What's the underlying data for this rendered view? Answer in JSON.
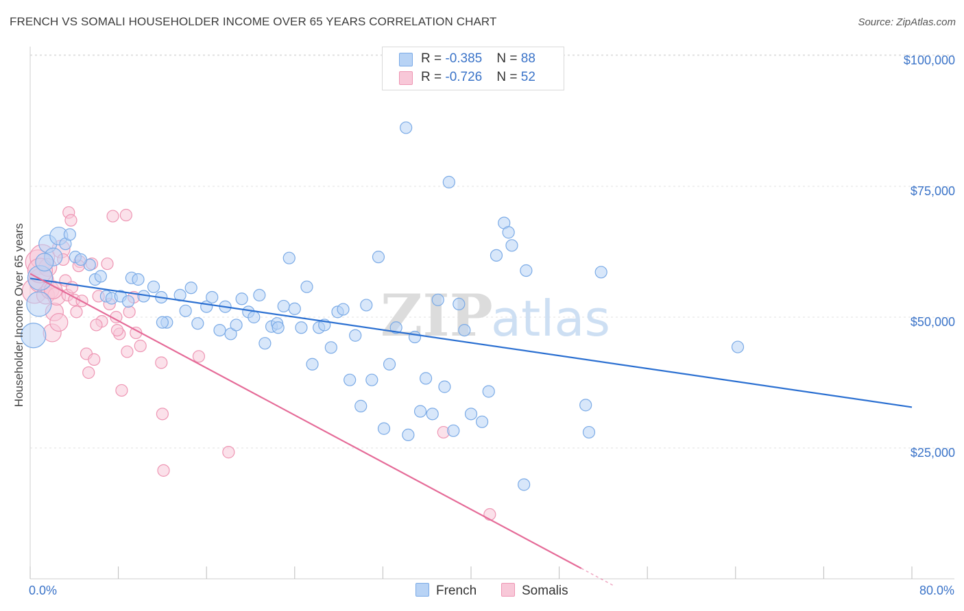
{
  "header": {
    "title": "FRENCH VS SOMALI HOUSEHOLDER INCOME OVER 65 YEARS CORRELATION CHART",
    "source": "Source: ZipAtlas.com"
  },
  "legend": {
    "rows": [
      {
        "r_label": "R = ",
        "r_value": "-0.385",
        "n_label": "N = ",
        "n_value": "88"
      },
      {
        "r_label": "R = ",
        "r_value": "-0.726",
        "n_label": "N = ",
        "n_value": "52"
      }
    ]
  },
  "watermark": {
    "zip": "ZIP",
    "atlas": "atlas"
  },
  "colors": {
    "french_fill": "#b8d3f5",
    "french_stroke": "#7aaae6",
    "french_line": "#2a6fd1",
    "somali_fill": "#f8c8d8",
    "somali_stroke": "#ee95b3",
    "somali_line": "#e56b98",
    "axis_text": "#3a73c8",
    "grid": "#e0e0e0"
  },
  "chart_data": {
    "type": "scatter",
    "title": "FRENCH VS SOMALI HOUSEHOLDER INCOME OVER 65 YEARS CORRELATION CHART",
    "xlabel": "",
    "ylabel": "Householder Income Over 65 years",
    "xlim": [
      0,
      80
    ],
    "ylim": [
      0,
      105000
    ],
    "x_tick_labels": [
      "0.0%",
      "80.0%"
    ],
    "y_ticks": [
      25000,
      50000,
      75000,
      100000
    ],
    "y_tick_labels": [
      "$25,000",
      "$50,000",
      "$75,000",
      "$100,000"
    ],
    "grid": "horizontal dashed",
    "legend_position": "bottom",
    "series": [
      {
        "name": "French",
        "r": -0.385,
        "n": 88,
        "trend": {
          "x": [
            0,
            80
          ],
          "y": [
            57400,
            32800
          ]
        },
        "points": [
          [
            0.3,
            46500
          ],
          [
            0.8,
            52500
          ],
          [
            0.9,
            57500
          ],
          [
            1.6,
            64000
          ],
          [
            2.1,
            61500
          ],
          [
            2.6,
            65500
          ],
          [
            3.2,
            64000
          ],
          [
            4.1,
            61500
          ],
          [
            5.4,
            60000
          ],
          [
            5.9,
            57200
          ],
          [
            6.4,
            57800
          ],
          [
            6.9,
            54000
          ],
          [
            7.4,
            53600
          ],
          [
            8.2,
            54000
          ],
          [
            8.9,
            53000
          ],
          [
            9.2,
            57500
          ],
          [
            9.8,
            57200
          ],
          [
            10.3,
            54000
          ],
          [
            11.2,
            55800
          ],
          [
            11.9,
            53800
          ],
          [
            12.4,
            49000
          ],
          [
            13.6,
            54200
          ],
          [
            14.1,
            51200
          ],
          [
            14.6,
            55600
          ],
          [
            15.2,
            48800
          ],
          [
            16.0,
            52000
          ],
          [
            16.5,
            53800
          ],
          [
            17.2,
            47500
          ],
          [
            17.7,
            52000
          ],
          [
            18.2,
            46800
          ],
          [
            18.7,
            48500
          ],
          [
            19.2,
            53500
          ],
          [
            19.8,
            51000
          ],
          [
            20.3,
            50000
          ],
          [
            20.8,
            54200
          ],
          [
            21.3,
            45000
          ],
          [
            21.9,
            48200
          ],
          [
            22.4,
            48800
          ],
          [
            23.0,
            52100
          ],
          [
            23.5,
            61300
          ],
          [
            24.0,
            51600
          ],
          [
            24.6,
            48000
          ],
          [
            25.1,
            55800
          ],
          [
            25.6,
            41000
          ],
          [
            26.2,
            48000
          ],
          [
            26.7,
            48500
          ],
          [
            27.3,
            44200
          ],
          [
            27.9,
            51000
          ],
          [
            28.4,
            51500
          ],
          [
            29.0,
            38000
          ],
          [
            29.5,
            46500
          ],
          [
            30.0,
            33000
          ],
          [
            30.5,
            52300
          ],
          [
            31.0,
            38000
          ],
          [
            31.6,
            61500
          ],
          [
            32.1,
            28700
          ],
          [
            32.6,
            41000
          ],
          [
            33.2,
            48000
          ],
          [
            34.1,
            86200
          ],
          [
            34.3,
            27500
          ],
          [
            34.9,
            46200
          ],
          [
            35.4,
            32000
          ],
          [
            35.9,
            38300
          ],
          [
            36.5,
            31500
          ],
          [
            37.0,
            53300
          ],
          [
            37.6,
            36700
          ],
          [
            38.0,
            75800
          ],
          [
            38.4,
            28300
          ],
          [
            38.9,
            52500
          ],
          [
            39.4,
            47500
          ],
          [
            40.0,
            31500
          ],
          [
            41.0,
            30000
          ],
          [
            41.6,
            35800
          ],
          [
            42.3,
            61800
          ],
          [
            43.0,
            68000
          ],
          [
            43.4,
            66200
          ],
          [
            43.7,
            63700
          ],
          [
            44.8,
            18000
          ],
          [
            45.0,
            58900
          ],
          [
            50.4,
            33200
          ],
          [
            50.7,
            28000
          ],
          [
            51.8,
            58600
          ],
          [
            64.2,
            44300
          ],
          [
            4.6,
            61000
          ],
          [
            1.3,
            60500
          ],
          [
            3.6,
            65800
          ],
          [
            12.0,
            49000
          ],
          [
            22.5,
            48000
          ]
        ]
      },
      {
        "name": "Somalis",
        "r": -0.726,
        "n": 52,
        "trend": {
          "x": [
            0,
            50
          ],
          "y": [
            58300,
            2000
          ]
        },
        "points": [
          [
            0.4,
            55000
          ],
          [
            0.7,
            60500
          ],
          [
            1.0,
            57000
          ],
          [
            1.1,
            61500
          ],
          [
            1.4,
            54200
          ],
          [
            1.6,
            59500
          ],
          [
            1.8,
            55200
          ],
          [
            2.0,
            47000
          ],
          [
            2.2,
            51000
          ],
          [
            2.4,
            54000
          ],
          [
            2.6,
            49000
          ],
          [
            2.8,
            63000
          ],
          [
            3.0,
            61000
          ],
          [
            3.2,
            57000
          ],
          [
            3.4,
            54200
          ],
          [
            3.5,
            70000
          ],
          [
            3.7,
            68500
          ],
          [
            3.8,
            55700
          ],
          [
            4.0,
            53300
          ],
          [
            4.2,
            51000
          ],
          [
            4.5,
            60600
          ],
          [
            4.7,
            53100
          ],
          [
            5.1,
            43000
          ],
          [
            5.3,
            39400
          ],
          [
            5.6,
            60200
          ],
          [
            5.8,
            41900
          ],
          [
            6.2,
            54000
          ],
          [
            6.5,
            49200
          ],
          [
            7.0,
            60200
          ],
          [
            7.2,
            52500
          ],
          [
            7.5,
            69300
          ],
          [
            7.8,
            50000
          ],
          [
            8.1,
            46800
          ],
          [
            8.3,
            36000
          ],
          [
            8.7,
            69500
          ],
          [
            8.8,
            43400
          ],
          [
            9.0,
            51000
          ],
          [
            9.4,
            53800
          ],
          [
            9.6,
            47000
          ],
          [
            10.0,
            44500
          ],
          [
            11.9,
            41300
          ],
          [
            12.0,
            31500
          ],
          [
            12.1,
            20700
          ],
          [
            15.3,
            42500
          ],
          [
            18.0,
            24200
          ],
          [
            37.5,
            28000
          ],
          [
            41.7,
            12300
          ],
          [
            2.1,
            55200
          ],
          [
            6.0,
            48500
          ],
          [
            4.4,
            59800
          ],
          [
            0.9,
            58900
          ],
          [
            7.9,
            47500
          ]
        ]
      }
    ]
  },
  "bottom_legend": [
    {
      "label": "French"
    },
    {
      "label": "Somalis"
    }
  ]
}
